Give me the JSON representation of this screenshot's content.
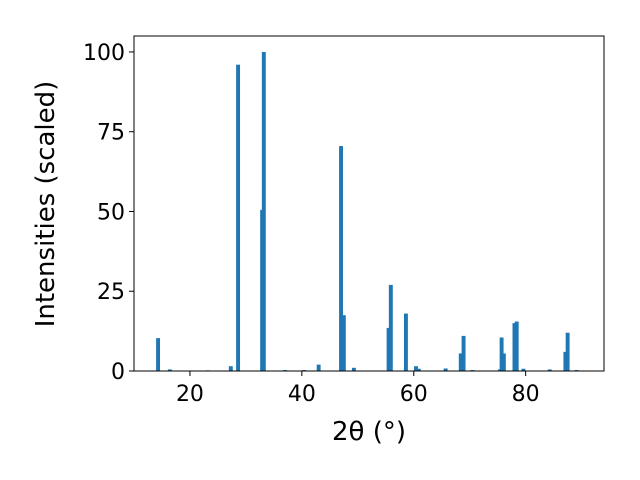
{
  "chart_data": {
    "type": "bar",
    "xlabel": "2θ (°)",
    "ylabel": "Intensities (scaled)",
    "x": [
      14.3,
      16.4,
      23.2,
      27.3,
      28.6,
      32.9,
      33.2,
      37.0,
      40.4,
      43.0,
      47.0,
      47.5,
      49.3,
      55.5,
      55.9,
      58.6,
      60.4,
      60.9,
      65.7,
      68.4,
      68.9,
      70.5,
      75.4,
      75.7,
      76.1,
      78.0,
      78.4,
      79.6,
      84.3,
      87.1,
      87.5,
      89.1
    ],
    "values": [
      10.3,
      0.5,
      0.2,
      1.5,
      96,
      50.5,
      100,
      0.3,
      0.3,
      2,
      70.5,
      17.5,
      1,
      13.5,
      27,
      18,
      1.5,
      0.7,
      0.8,
      5.5,
      11,
      0.3,
      0.5,
      10.5,
      5.5,
      15,
      15.5,
      0.7,
      0.5,
      6,
      12,
      0.3
    ],
    "color": "#1f77b4",
    "xlim": [
      10,
      94
    ],
    "xticks": [
      20,
      40,
      60,
      80
    ],
    "ylim": [
      0,
      105
    ],
    "yticks": [
      0,
      25,
      50,
      75,
      100
    ]
  }
}
